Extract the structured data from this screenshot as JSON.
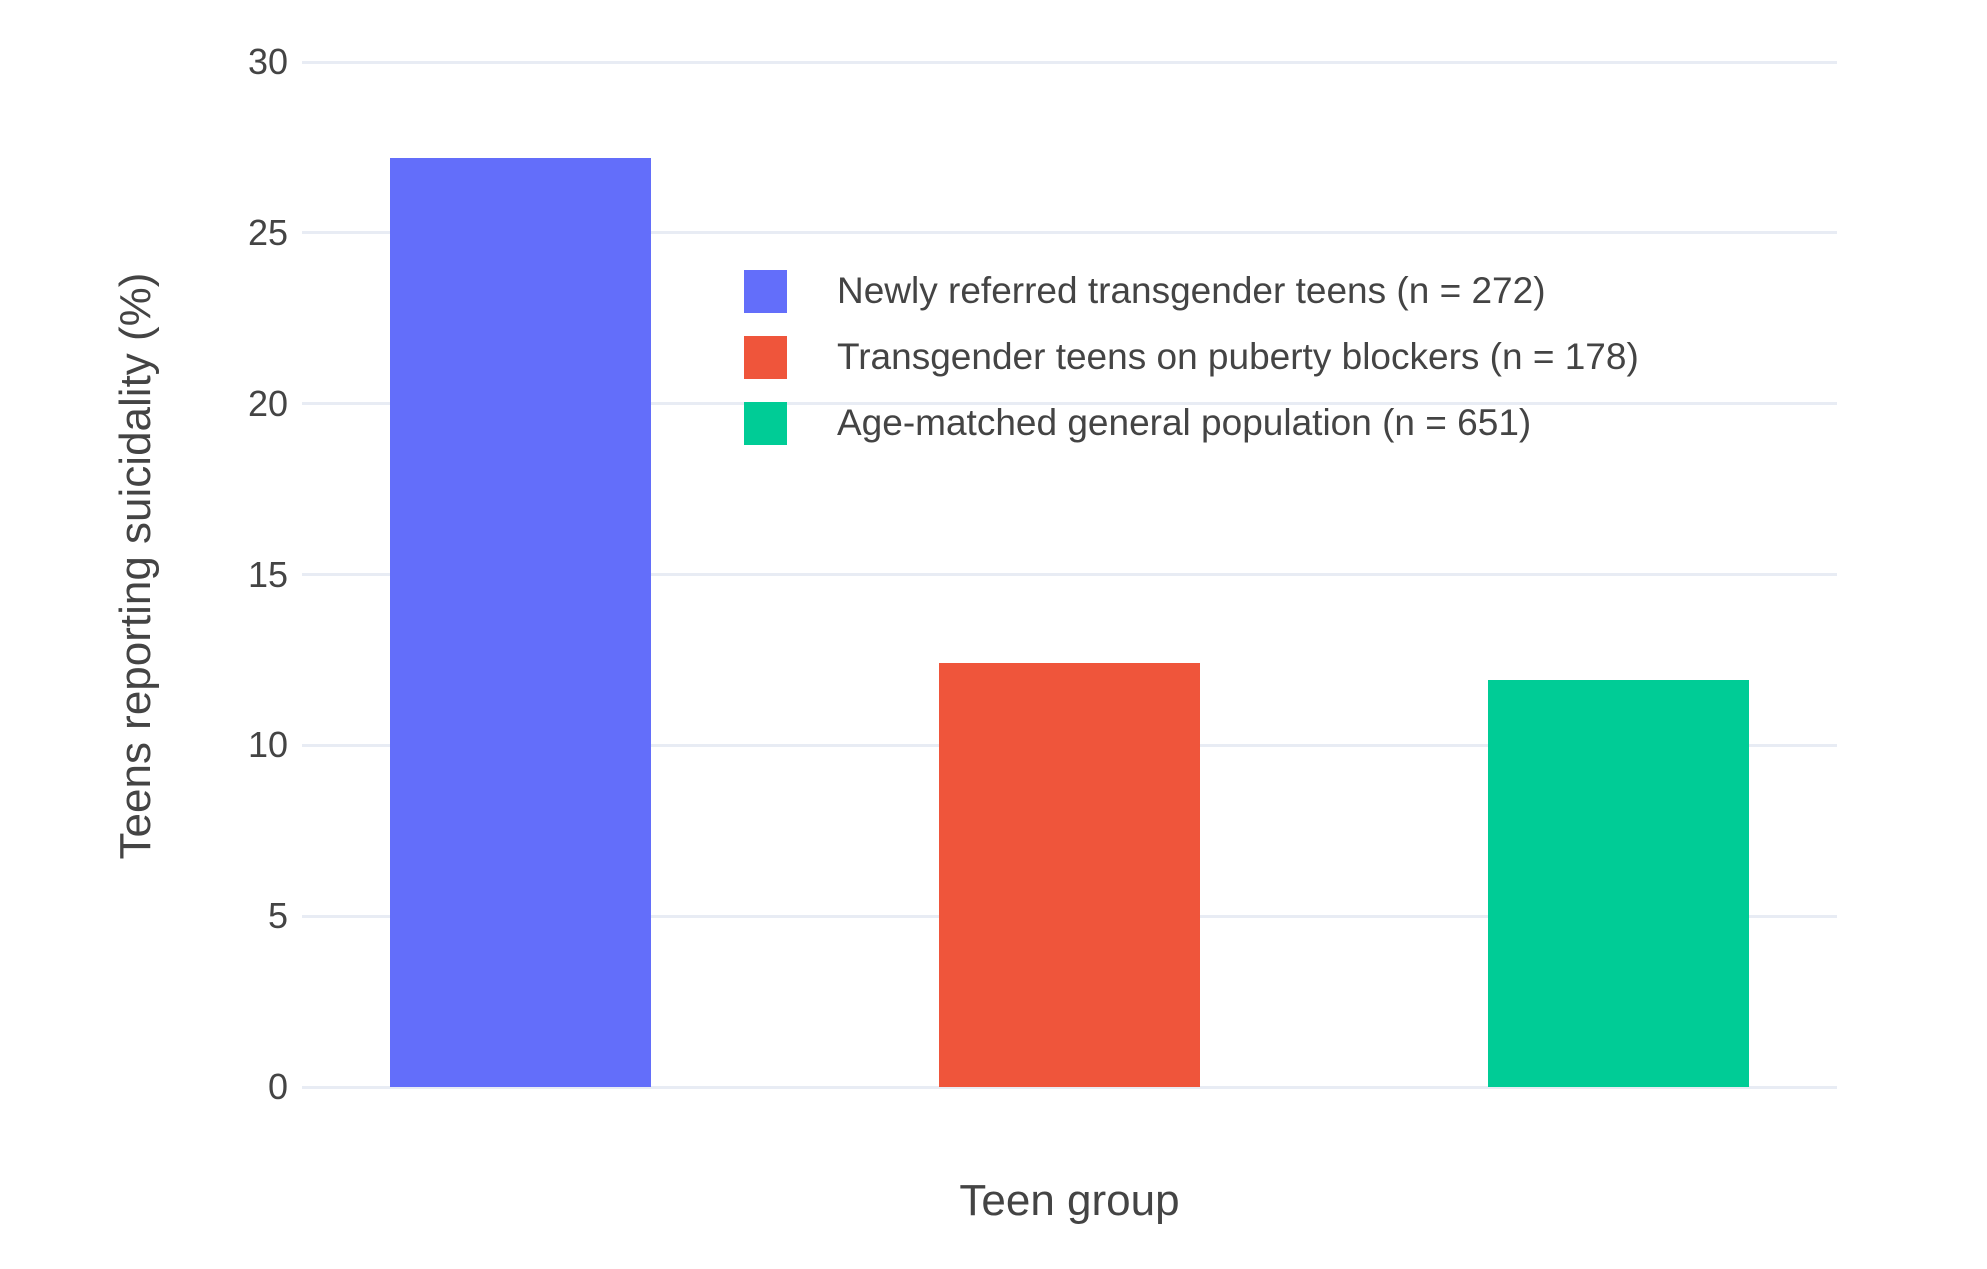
{
  "chart_data": {
    "type": "bar",
    "title": "",
    "xlabel": "Teen group",
    "ylabel": "Teens reporting suicidality (%)",
    "ylim": [
      0,
      30.5
    ],
    "yticks": [
      0,
      5,
      10,
      15,
      20,
      25,
      30
    ],
    "grid": true,
    "legend_position": "inside-top-right",
    "background_color": "#FFFFFF",
    "gridline_color": "#E8ECF4",
    "text_color": "#444444",
    "series": [
      {
        "name": "Newly referred transgender teens (n = 272)",
        "value": 27.2,
        "color": "#636EFA"
      },
      {
        "name": "Transgender teens on puberty blockers (n = 178)",
        "value": 12.4,
        "color": "#EF553B"
      },
      {
        "name": "Age-matched general population (n = 651)",
        "value": 11.9,
        "color": "#00CC96"
      }
    ]
  }
}
